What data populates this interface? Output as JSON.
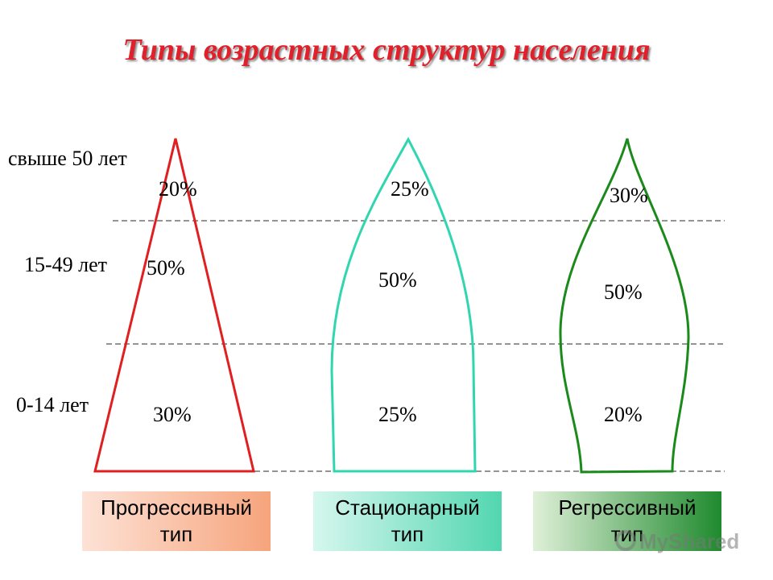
{
  "title": "Типы возрастных структур населения",
  "age_groups": [
    {
      "label": "свыше 50 лет"
    },
    {
      "label": "15-49 лет"
    },
    {
      "label": "0-14 лет"
    }
  ],
  "pyramids": [
    {
      "type_label_line1": "Прогрессивный",
      "type_label_line2": "тип",
      "color": "#e02020",
      "box_color": "#f6a47c",
      "percents": {
        "old": "20%",
        "middle": "50%",
        "young": "30%"
      }
    },
    {
      "type_label_line1": "Стационарный",
      "type_label_line2": "тип",
      "color": "#30d6b0",
      "box_color": "#52d6b0",
      "percents": {
        "old": "25%",
        "middle": "50%",
        "young": "25%"
      }
    },
    {
      "type_label_line1": "Регрессивный",
      "type_label_line2": "тип",
      "color": "#1a8a1a",
      "box_color": "#1f8a2e",
      "percents": {
        "old": "30%",
        "middle": "50%",
        "young": "20%"
      }
    }
  ],
  "watermark": "MyShared"
}
